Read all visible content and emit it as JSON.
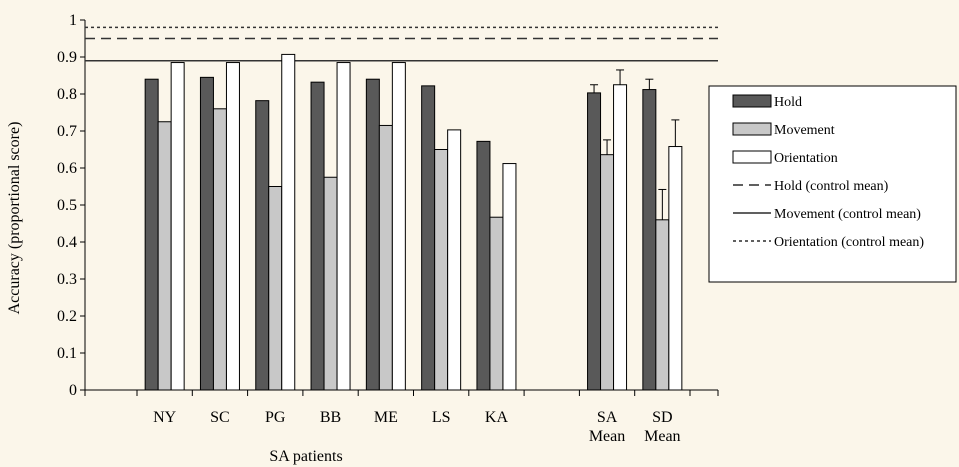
{
  "chart_data": {
    "type": "bar",
    "title": "",
    "xlabel": "SA patients",
    "ylabel": "Accuracy (proportional score)",
    "ylim": [
      0,
      1
    ],
    "yticks": [
      "0",
      "0.1",
      "0.2",
      "0.3",
      "0.4",
      "0.5",
      "0.6",
      "0.7",
      "0.8",
      "0.9",
      "1"
    ],
    "categories": [
      {
        "line1": "NY",
        "line2": ""
      },
      {
        "line1": "SC",
        "line2": ""
      },
      {
        "line1": "PG",
        "line2": ""
      },
      {
        "line1": "BB",
        "line2": ""
      },
      {
        "line1": "ME",
        "line2": ""
      },
      {
        "line1": "LS",
        "line2": ""
      },
      {
        "line1": "KA",
        "line2": ""
      },
      {
        "line1": "",
        "line2": ""
      },
      {
        "line1": "SA",
        "line2": "Mean"
      },
      {
        "line1": "SD",
        "line2": "Mean"
      }
    ],
    "series": [
      {
        "name": "Hold",
        "fill": "#595959",
        "values": [
          0.84,
          0.845,
          0.782,
          0.832,
          0.84,
          0.822,
          0.672,
          0,
          0.803,
          0.812
        ],
        "errors": [
          null,
          null,
          null,
          null,
          null,
          null,
          null,
          null,
          0.022,
          0.028
        ]
      },
      {
        "name": "Movement",
        "fill": "#c8c8c8",
        "values": [
          0.725,
          0.76,
          0.55,
          0.575,
          0.715,
          0.65,
          0.467,
          0,
          0.636,
          0.46
        ],
        "errors": [
          null,
          null,
          null,
          null,
          null,
          null,
          null,
          null,
          0.04,
          0.082
        ]
      },
      {
        "name": "Orientation",
        "fill": "#ffffff",
        "values": [
          0.885,
          0.885,
          0.907,
          0.885,
          0.885,
          0.703,
          0.612,
          0,
          0.825,
          0.658
        ],
        "errors": [
          null,
          null,
          null,
          null,
          null,
          null,
          null,
          null,
          0.04,
          0.072
        ]
      }
    ],
    "reference_lines": [
      {
        "name": "Hold (control mean)",
        "value": 0.95,
        "style": "dashed"
      },
      {
        "name": "Movement (control mean)",
        "value": 0.89,
        "style": "solid"
      },
      {
        "name": "Orientation (control mean)",
        "value": 0.98,
        "style": "dotted"
      }
    ],
    "legend_position": "right",
    "grid": false
  }
}
